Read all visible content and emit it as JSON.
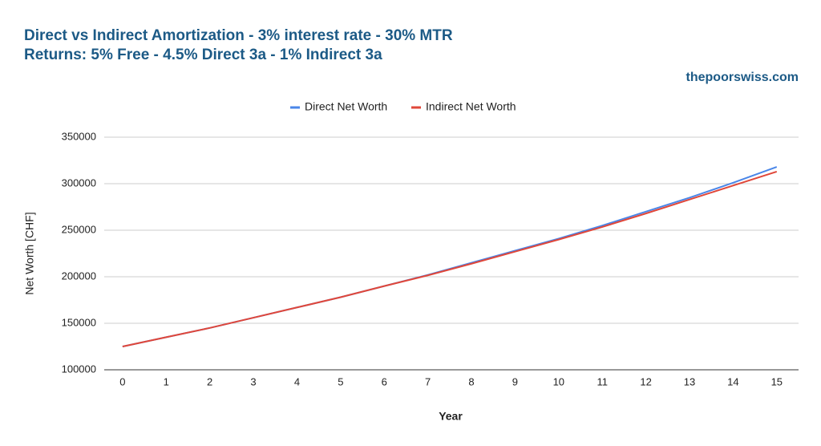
{
  "chart_data": {
    "type": "line",
    "title": "Direct vs Indirect Amortization - 3% interest rate - 30% MTR",
    "subtitle": "Returns: 5% Free - 4.5% Direct 3a - 1% Indirect 3a",
    "source": "thepoorswiss.com",
    "x_label": "Year",
    "y_label": "Net Worth [CHF]",
    "x": [
      0,
      1,
      2,
      3,
      4,
      5,
      6,
      7,
      8,
      9,
      10,
      11,
      12,
      13,
      14,
      15
    ],
    "series": [
      {
        "name": "Direct Net Worth",
        "color": "#4a86e8",
        "values": [
          125000,
          135000,
          145000,
          156000,
          167000,
          178000,
          190000,
          202000,
          215000,
          228000,
          241000,
          255000,
          270000,
          285000,
          301000,
          318000
        ]
      },
      {
        "name": "Indirect Net Worth",
        "color": "#e0473a",
        "values": [
          125000,
          135000,
          145000,
          156000,
          167000,
          178000,
          190000,
          201500,
          214000,
          227000,
          240000,
          253500,
          268000,
          283000,
          298000,
          313000
        ]
      }
    ],
    "xlim": [
      -0.42,
      15.5
    ],
    "xticks": [
      0,
      1,
      2,
      3,
      4,
      5,
      6,
      7,
      8,
      9,
      10,
      11,
      12,
      13,
      14,
      15
    ],
    "ylim": [
      100000,
      350000
    ],
    "yticks": [
      100000,
      150000,
      200000,
      250000,
      300000,
      350000
    ],
    "grid": true,
    "legend": "top"
  }
}
